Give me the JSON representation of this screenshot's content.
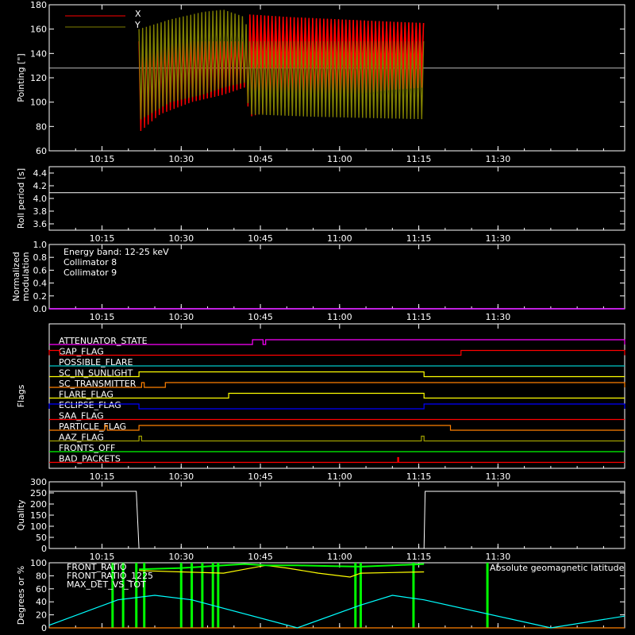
{
  "time_axis": {
    "ticks": [
      "10:15",
      "10:30",
      "10:45",
      "11:00",
      "11:15",
      "11:30"
    ],
    "tick_minutes": [
      615,
      630,
      645,
      660,
      675,
      690
    ],
    "range_minutes": [
      605,
      714
    ]
  },
  "colors": {
    "x": "#ff0000",
    "y": "#808000",
    "white": "#ffffff",
    "cyan": "#00ffff",
    "magenta": "#ff00ff",
    "red": "#ff0000",
    "yellow": "#ffff00",
    "green": "#00ff00",
    "blue": "#0000ff",
    "orange": "#ff8000",
    "olive": "#a0a000",
    "teal": "#00c8c8"
  },
  "chart_data": [
    {
      "type": "area",
      "ylabel": "Pointing [\"]",
      "ylim": [
        60,
        180
      ],
      "yticks": [
        60,
        80,
        100,
        120,
        140,
        160,
        180
      ],
      "reference_line": 128,
      "legend": [
        {
          "name": "X",
          "color": "#ff0000"
        },
        {
          "name": "Y",
          "color": "#808000"
        }
      ],
      "series": [
        {
          "name": "X",
          "color": "#ff0000",
          "envelope": [
            {
              "t": 622,
              "lo": 75,
              "hi": 150
            },
            {
              "t": 626,
              "lo": 90,
              "hi": 150
            },
            {
              "t": 632,
              "lo": 100,
              "hi": 150
            },
            {
              "t": 638,
              "lo": 106,
              "hi": 150
            },
            {
              "t": 642,
              "lo": 112,
              "hi": 150
            },
            {
              "t": 643,
              "lo": 88,
              "hi": 172
            },
            {
              "t": 650,
              "lo": 96,
              "hi": 170
            },
            {
              "t": 660,
              "lo": 105,
              "hi": 168
            },
            {
              "t": 670,
              "lo": 110,
              "hi": 166
            },
            {
              "t": 676,
              "lo": 112,
              "hi": 165
            }
          ]
        },
        {
          "name": "Y",
          "color": "#808000",
          "envelope": [
            {
              "t": 622,
              "lo": 85,
              "hi": 160
            },
            {
              "t": 628,
              "lo": 100,
              "hi": 168
            },
            {
              "t": 634,
              "lo": 106,
              "hi": 174
            },
            {
              "t": 638,
              "lo": 112,
              "hi": 176
            },
            {
              "t": 642,
              "lo": 116,
              "hi": 170
            },
            {
              "t": 643,
              "lo": 90,
              "hi": 150
            },
            {
              "t": 655,
              "lo": 88,
              "hi": 150
            },
            {
              "t": 665,
              "lo": 87,
              "hi": 150
            },
            {
              "t": 676,
              "lo": 86,
              "hi": 150
            }
          ]
        }
      ]
    },
    {
      "type": "line",
      "ylabel": "Roll period [s]",
      "ylim": [
        3.5,
        4.5
      ],
      "yticks": [
        "3.6",
        "3.8",
        "4.0",
        "4.2",
        "4.4"
      ],
      "ytick_values": [
        3.6,
        3.8,
        4.0,
        4.2,
        4.4
      ],
      "series": [
        {
          "name": "",
          "color": "#ffffff",
          "points": [
            [
              605,
              4.09
            ],
            [
              714,
              4.09
            ]
          ]
        }
      ]
    },
    {
      "type": "line",
      "ylabel": "Normalized modulation",
      "ylabel_lines": [
        "Normalized",
        "modulation"
      ],
      "ylim": [
        0,
        1
      ],
      "yticks": [
        "0.0",
        "0.2",
        "0.4",
        "0.6",
        "0.8",
        "1.0"
      ],
      "ytick_values": [
        0,
        0.2,
        0.4,
        0.6,
        0.8,
        1.0
      ],
      "annotations": [
        {
          "text": "Energy band: 12-25 keV",
          "color": "#ffffff"
        },
        {
          "text": "Collimator 8",
          "color": "#00ffff"
        },
        {
          "text": "Collimator 9",
          "color": "#ff00ff"
        }
      ],
      "series": [
        {
          "name": "Collimator 8",
          "color": "#00ffff",
          "points": [
            [
              605,
              0
            ],
            [
              714,
              0
            ]
          ]
        },
        {
          "name": "Collimator 9",
          "color": "#ff00ff",
          "points": [
            [
              605,
              0
            ],
            [
              714,
              0
            ]
          ]
        }
      ]
    },
    {
      "type": "line",
      "ylabel": "Flags",
      "flags": [
        {
          "name": "ATTENUATOR_STATE",
          "color": "#ff00ff",
          "high": [
            [
              643.5,
              645.5
            ],
            [
              646,
              714
            ]
          ]
        },
        {
          "name": "GAP_FLAG",
          "color": "#ff0000",
          "high": [
            [
              605,
              607
            ]
          ],
          "high_after": [
            [
              683,
              714
            ]
          ]
        },
        {
          "name": "POSSIBLE_FLARE",
          "color": "#00c8c8",
          "high": []
        },
        {
          "name": "SC_IN_SUNLIGHT",
          "color": "#ffff00",
          "high": [
            [
              622,
              676
            ]
          ]
        },
        {
          "name": "SC_TRANSMITTER",
          "color": "#ff8000",
          "high": [
            [
              622.5,
              623
            ],
            [
              627,
              714
            ]
          ]
        },
        {
          "name": "FLARE_FLAG",
          "color": "#ffff00",
          "high": [
            [
              639,
              676
            ]
          ]
        },
        {
          "name": "ECLIPSE_FLAG",
          "color": "#0000ff",
          "high": [
            [
              605,
              622
            ],
            [
              676,
              714
            ]
          ]
        },
        {
          "name": "SAA_FLAG",
          "color": "#ff0000",
          "high": []
        },
        {
          "name": "PARTICLE_FLAG",
          "color": "#ff8000",
          "high": [
            [
              615.5,
              616
            ],
            [
              622,
              681
            ]
          ]
        },
        {
          "name": "AAZ_FLAG",
          "color": "#a0a000",
          "high": [
            [
              622,
              622.5
            ],
            [
              675.5,
              676
            ]
          ]
        },
        {
          "name": "FRONTS_OFF",
          "color": "#00ff00",
          "high": []
        },
        {
          "name": "BAD_PACKETS",
          "color": "#ff0000",
          "high": [
            [
              671,
              671.2
            ]
          ]
        }
      ]
    },
    {
      "type": "line",
      "ylabel": "Quality",
      "ylim": [
        0,
        300
      ],
      "yticks": [
        0,
        50,
        100,
        150,
        200,
        250,
        300
      ],
      "series": [
        {
          "name": "",
          "color": "#ffffff",
          "points": [
            [
              605,
              257
            ],
            [
              621.5,
              257
            ],
            [
              622,
              0
            ],
            [
              676,
              0
            ],
            [
              676.2,
              257
            ],
            [
              714,
              257
            ]
          ]
        }
      ]
    },
    {
      "type": "line",
      "ylabel": "Degrees or %",
      "ylim": [
        0,
        100
      ],
      "yticks": [
        0,
        20,
        40,
        60,
        80,
        100
      ],
      "labels": [
        {
          "name": "FRONT_RATIO",
          "color": "#ffff00"
        },
        {
          "name": "FRONT_RATIO_1225",
          "color": "#00ff00"
        },
        {
          "name": "MAX_DET_VS_TOT",
          "color": "#ff8000"
        },
        {
          "name": "Absolute geomagnetic latitude",
          "color": "#00ffff"
        }
      ],
      "series": [
        {
          "name": "FRONT_RATIO",
          "color": "#ffff00",
          "points": [
            [
              622,
              88
            ],
            [
              630,
              86
            ],
            [
              638,
              84
            ],
            [
              642,
              90
            ],
            [
              646,
              96
            ],
            [
              650,
              92
            ],
            [
              656,
              84
            ],
            [
              662,
              78
            ],
            [
              664,
              84
            ],
            [
              670,
              85
            ],
            [
              676,
              86
            ]
          ]
        },
        {
          "name": "FRONT_RATIO_1225",
          "color": "#00ff00",
          "points": [
            [
              622,
              90
            ],
            [
              630,
              92
            ],
            [
              638,
              96
            ],
            [
              642,
              98
            ],
            [
              646,
              96
            ],
            [
              652,
              96
            ],
            [
              658,
              95
            ],
            [
              664,
              94
            ],
            [
              670,
              96
            ],
            [
              676,
              98
            ]
          ]
        },
        {
          "name": "MAX_DET_VS_TOT",
          "color": "#ff8000",
          "points": [
            [
              605,
              0
            ],
            [
              714,
              0
            ]
          ]
        },
        {
          "name": "Absolute geomagnetic latitude",
          "color": "#00ffff",
          "points": [
            [
              605,
              4
            ],
            [
              618,
              43
            ],
            [
              625,
              50
            ],
            [
              632,
              43
            ],
            [
              652,
              0
            ],
            [
              664,
              35
            ],
            [
              670,
              50
            ],
            [
              676,
              43
            ],
            [
              700,
              0
            ],
            [
              714,
              18
            ]
          ]
        }
      ],
      "spikes": [
        617,
        619,
        621.5,
        623,
        630,
        632,
        634,
        636,
        637,
        663,
        664,
        674,
        688
      ]
    }
  ]
}
